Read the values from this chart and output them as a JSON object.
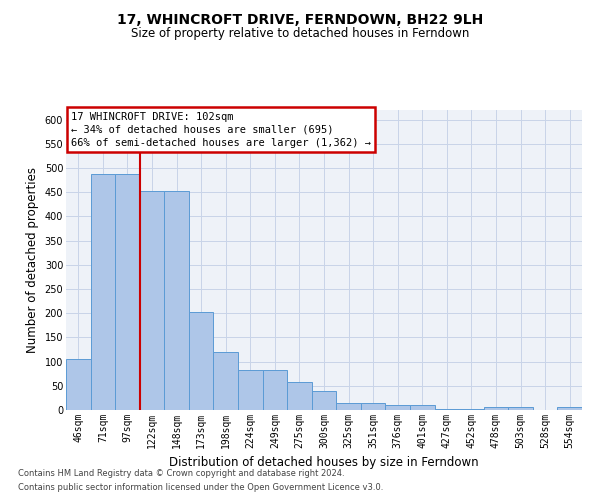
{
  "title": "17, WHINCROFT DRIVE, FERNDOWN, BH22 9LH",
  "subtitle": "Size of property relative to detached houses in Ferndown",
  "xlabel": "Distribution of detached houses by size in Ferndown",
  "ylabel": "Number of detached properties",
  "bar_color": "#aec6e8",
  "bar_edge_color": "#5b9bd5",
  "grid_color": "#c8d4e8",
  "background_color": "#eef2f8",
  "annotation_box_color": "#cc0000",
  "vline_color": "#cc0000",
  "categories": [
    "46sqm",
    "71sqm",
    "97sqm",
    "122sqm",
    "148sqm",
    "173sqm",
    "198sqm",
    "224sqm",
    "249sqm",
    "275sqm",
    "300sqm",
    "325sqm",
    "351sqm",
    "376sqm",
    "401sqm",
    "427sqm",
    "452sqm",
    "478sqm",
    "503sqm",
    "528sqm",
    "554sqm"
  ],
  "values": [
    105,
    487,
    487,
    453,
    453,
    202,
    120,
    83,
    83,
    57,
    40,
    15,
    15,
    11,
    11,
    2,
    2,
    6,
    6,
    1,
    7
  ],
  "vline_x": 2.5,
  "ylim": [
    0,
    620
  ],
  "yticks": [
    0,
    50,
    100,
    150,
    200,
    250,
    300,
    350,
    400,
    450,
    500,
    550,
    600
  ],
  "annotation_text_line1": "17 WHINCROFT DRIVE: 102sqm",
  "annotation_text_line2": "← 34% of detached houses are smaller (695)",
  "annotation_text_line3": "66% of semi-detached houses are larger (1,362) →",
  "footer_line1": "Contains HM Land Registry data © Crown copyright and database right 2024.",
  "footer_line2": "Contains public sector information licensed under the Open Government Licence v3.0.",
  "title_fontsize": 10,
  "subtitle_fontsize": 8.5,
  "ylabel_fontsize": 8.5,
  "xlabel_fontsize": 8.5,
  "tick_fontsize": 7,
  "annotation_fontsize": 7.5,
  "footer_fontsize": 6,
  "figwidth": 6.0,
  "figheight": 5.0,
  "dpi": 100
}
